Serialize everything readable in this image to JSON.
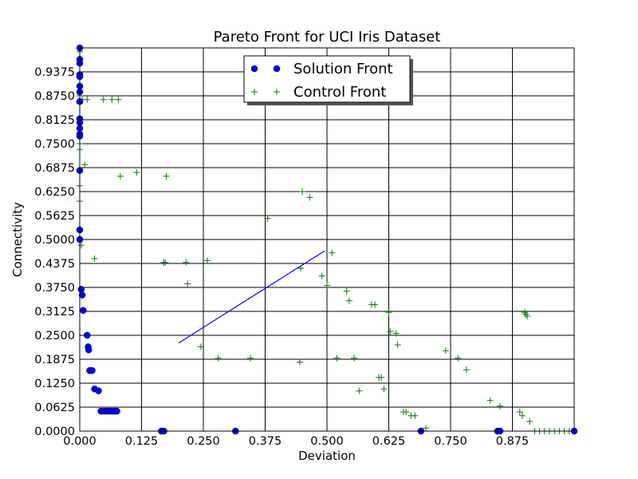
{
  "chart_data": {
    "type": "scatter",
    "title": "Pareto Front for UCI Iris Dataset",
    "xlabel": "Deviation",
    "ylabel": "Connectivity",
    "xlim": [
      0,
      1
    ],
    "ylim": [
      0,
      1
    ],
    "grid": true,
    "legend_position": "top-center",
    "x_ticks": [
      "0.000",
      "0.125",
      "0.250",
      "0.375",
      "0.500",
      "0.625",
      "0.750",
      "0.875"
    ],
    "y_ticks": [
      "0.0000",
      "0.0625",
      "0.1250",
      "0.1875",
      "0.2500",
      "0.3125",
      "0.3750",
      "0.4375",
      "0.5000",
      "0.5625",
      "0.6250",
      "0.6875",
      "0.7500",
      "0.8125",
      "0.8750",
      "0.9375"
    ],
    "series": [
      {
        "name": "Solution Front",
        "marker": "circle",
        "color": "#0000ff",
        "points": [
          [
            0.0,
            1.0
          ],
          [
            0.0,
            0.97
          ],
          [
            0.0,
            0.96
          ],
          [
            0.0,
            0.93
          ],
          [
            0.0,
            0.925
          ],
          [
            0.0,
            0.9
          ],
          [
            0.0,
            0.885
          ],
          [
            0.0,
            0.86
          ],
          [
            0.0,
            0.815
          ],
          [
            0.0,
            0.805
          ],
          [
            0.0,
            0.79
          ],
          [
            0.0,
            0.775
          ],
          [
            0.0,
            0.77
          ],
          [
            0.0,
            0.68
          ],
          [
            0.0,
            0.525
          ],
          [
            0.0,
            0.5
          ],
          [
            0.003,
            0.37
          ],
          [
            0.005,
            0.355
          ],
          [
            0.007,
            0.315
          ],
          [
            0.015,
            0.25
          ],
          [
            0.017,
            0.22
          ],
          [
            0.018,
            0.212
          ],
          [
            0.02,
            0.158
          ],
          [
            0.025,
            0.158
          ],
          [
            0.03,
            0.11
          ],
          [
            0.038,
            0.105
          ],
          [
            0.043,
            0.052
          ],
          [
            0.05,
            0.052
          ],
          [
            0.055,
            0.052
          ],
          [
            0.06,
            0.052
          ],
          [
            0.065,
            0.052
          ],
          [
            0.07,
            0.052
          ],
          [
            0.075,
            0.052
          ],
          [
            0.165,
            0.0
          ],
          [
            0.17,
            0.0
          ],
          [
            0.315,
            0.0
          ],
          [
            0.69,
            0.0
          ],
          [
            0.845,
            0.0
          ],
          [
            0.85,
            0.0
          ],
          [
            1.0,
            0.0
          ]
        ]
      },
      {
        "name": "Control Front",
        "marker": "plus",
        "color": "#008000",
        "points": [
          [
            0.0,
            0.99
          ],
          [
            0.0,
            0.935
          ],
          [
            0.0,
            0.875
          ],
          [
            0.0,
            0.855
          ],
          [
            0.0,
            0.75
          ],
          [
            0.0,
            0.735
          ],
          [
            0.0,
            0.64
          ],
          [
            0.0,
            0.6
          ],
          [
            0.003,
            0.485
          ],
          [
            0.005,
            0.865
          ],
          [
            0.01,
            0.695
          ],
          [
            0.015,
            0.865
          ],
          [
            0.03,
            0.45
          ],
          [
            0.048,
            0.865
          ],
          [
            0.065,
            0.865
          ],
          [
            0.078,
            0.865
          ],
          [
            0.082,
            0.665
          ],
          [
            0.115,
            0.675
          ],
          [
            0.17,
            0.44
          ],
          [
            0.173,
            0.44
          ],
          [
            0.175,
            0.665
          ],
          [
            0.215,
            0.44
          ],
          [
            0.218,
            0.385
          ],
          [
            0.245,
            0.22
          ],
          [
            0.258,
            0.445
          ],
          [
            0.28,
            0.19
          ],
          [
            0.345,
            0.19
          ],
          [
            0.38,
            0.555
          ],
          [
            0.445,
            0.18
          ],
          [
            0.447,
            0.425
          ],
          [
            0.45,
            0.625
          ],
          [
            0.465,
            0.61
          ],
          [
            0.49,
            0.405
          ],
          [
            0.5,
            0.38
          ],
          [
            0.51,
            0.465
          ],
          [
            0.52,
            0.19
          ],
          [
            0.54,
            0.365
          ],
          [
            0.545,
            0.34
          ],
          [
            0.555,
            0.19
          ],
          [
            0.565,
            0.105
          ],
          [
            0.59,
            0.33
          ],
          [
            0.597,
            0.33
          ],
          [
            0.605,
            0.14
          ],
          [
            0.61,
            0.14
          ],
          [
            0.615,
            0.11
          ],
          [
            0.625,
            0.31
          ],
          [
            0.628,
            0.26
          ],
          [
            0.64,
            0.255
          ],
          [
            0.643,
            0.225
          ],
          [
            0.655,
            0.05
          ],
          [
            0.66,
            0.05
          ],
          [
            0.67,
            0.04
          ],
          [
            0.678,
            0.04
          ],
          [
            0.7,
            0.008
          ],
          [
            0.74,
            0.21
          ],
          [
            0.765,
            0.19
          ],
          [
            0.782,
            0.16
          ],
          [
            0.83,
            0.08
          ],
          [
            0.85,
            0.065
          ],
          [
            0.89,
            0.05
          ],
          [
            0.895,
            0.04
          ],
          [
            0.9,
            0.31
          ],
          [
            0.902,
            0.305
          ],
          [
            0.905,
            0.3
          ],
          [
            0.91,
            0.025
          ],
          [
            0.92,
            0.0
          ],
          [
            0.93,
            0.0
          ],
          [
            0.94,
            0.0
          ],
          [
            0.95,
            0.0
          ],
          [
            0.96,
            0.0
          ],
          [
            0.97,
            0.0
          ],
          [
            0.98,
            0.0
          ],
          [
            0.99,
            0.0
          ]
        ]
      },
      {
        "marker": "line",
        "color": "#0000ff",
        "points": [
          [
            0.2,
            0.23
          ],
          [
            0.495,
            0.47
          ]
        ]
      }
    ]
  }
}
